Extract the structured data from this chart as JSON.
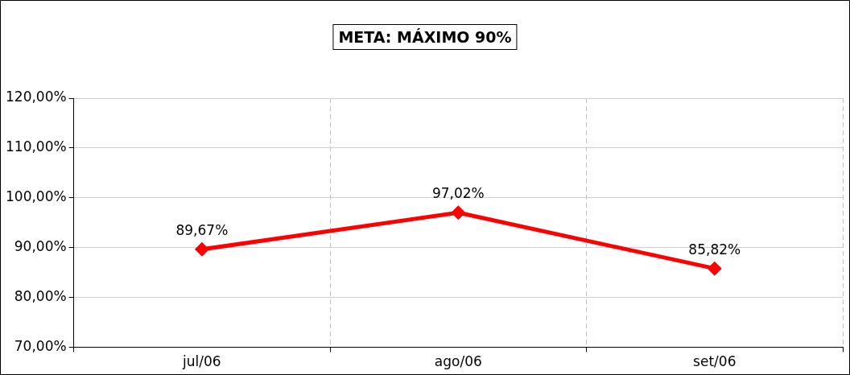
{
  "chart_data": {
    "type": "line",
    "title": "META: MÁXIMO 90%",
    "categories": [
      "jul/06",
      "ago/06",
      "set/06"
    ],
    "series": [
      {
        "color": "#ff0000",
        "values": [
          89.67,
          97.02,
          85.82
        ],
        "value_labels": [
          "89,67%",
          "97,02%",
          "85,82%"
        ]
      }
    ],
    "ylim": [
      70,
      120
    ],
    "yticks": [
      {
        "value": 70,
        "label": "70,00%"
      },
      {
        "value": 80,
        "label": "80,00%"
      },
      {
        "value": 90,
        "label": "90,00%"
      },
      {
        "value": 100,
        "label": "100,00%"
      },
      {
        "value": 110,
        "label": "110,00%"
      },
      {
        "value": 120,
        "label": "120,00%"
      }
    ],
    "grid": true,
    "legend": false,
    "marker": "diamond",
    "line_style": "solid"
  }
}
